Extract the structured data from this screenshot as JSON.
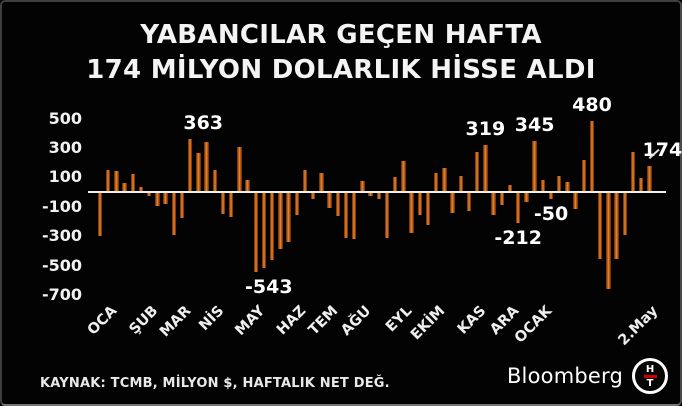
{
  "title": {
    "line1": "YABANCILAR GEÇEN HAFTA",
    "line2": "174 MİLYON DOLARLIK HİSSE ALDI"
  },
  "source": "KAYNAK: TCMB, MİLYON $, HAFTALIK NET DEĞ.",
  "branding": {
    "wordmark": "Bloomberg",
    "logo_top": "H",
    "logo_bottom": "T"
  },
  "colors": {
    "background": "#030303",
    "text": "#f4f4f4",
    "axis_line": "#f2f2f2",
    "bar_shadow": "#5e2606",
    "bar_main": "#c2651c",
    "bar_highlight": "#ef8a28",
    "bar_mid": "#a44d13",
    "logo_red": "#cc0000"
  },
  "chart_data": {
    "type": "bar",
    "title": "YABANCILAR GEÇEN HAFTA 174 MİLYON DOLARLIK HİSSE ALDI",
    "xlabel": "",
    "ylabel": "",
    "unit": "MİLYON $",
    "frequency": "HAFTALIK NET DEĞ.",
    "grid": false,
    "legend": false,
    "ylim": [
      -730,
      545
    ],
    "y_ticks": [
      500,
      300,
      100,
      -100,
      -300,
      -500,
      -700
    ],
    "values": [
      -300,
      150,
      140,
      58,
      124,
      33,
      -28,
      -95,
      -80,
      -290,
      -175,
      363,
      268,
      340,
      147,
      -148,
      -170,
      306,
      79,
      -543,
      -520,
      -460,
      -385,
      -340,
      -155,
      152,
      -45,
      130,
      -110,
      -160,
      -310,
      -320,
      75,
      -30,
      -50,
      -315,
      100,
      213,
      -280,
      -157,
      -224,
      129,
      165,
      -143,
      110,
      -130,
      275,
      319,
      -159,
      -90,
      46,
      -212,
      -68,
      345,
      85,
      -50,
      108,
      67,
      -113,
      215,
      480,
      -453,
      -657,
      -453,
      -295,
      272,
      95,
      174
    ],
    "month_labels": [
      {
        "label": "OCA",
        "index": 0
      },
      {
        "label": "ŞUB",
        "index": 5
      },
      {
        "label": "MAR",
        "index": 9
      },
      {
        "label": "NİS",
        "index": 13
      },
      {
        "label": "MAY",
        "index": 18
      },
      {
        "label": "HAZ",
        "index": 23
      },
      {
        "label": "TEM",
        "index": 27
      },
      {
        "label": "AĞU",
        "index": 31
      },
      {
        "label": "EYL",
        "index": 36
      },
      {
        "label": "EKİM",
        "index": 40
      },
      {
        "label": "KAS",
        "index": 45
      },
      {
        "label": "ARA",
        "index": 49
      },
      {
        "label": "OCAK",
        "index": 53
      },
      {
        "label": "2.May",
        "index": 66
      }
    ],
    "annotations": [
      {
        "text": "363",
        "index": 11,
        "side": "above",
        "align": "right"
      },
      {
        "text": "-543",
        "index": 19,
        "side": "below",
        "align": "right"
      },
      {
        "text": "319",
        "index": 47,
        "side": "above",
        "align": "center"
      },
      {
        "text": "-212",
        "index": 51,
        "side": "below",
        "align": "center"
      },
      {
        "text": "345",
        "index": 53,
        "side": "above",
        "align": "center"
      },
      {
        "text": "-50",
        "index": 55,
        "side": "below",
        "align": "center"
      },
      {
        "text": "480",
        "index": 60,
        "side": "above",
        "align": "center"
      },
      {
        "text": "174",
        "index": 67,
        "side": "above",
        "align": "right",
        "connector": true
      }
    ]
  }
}
